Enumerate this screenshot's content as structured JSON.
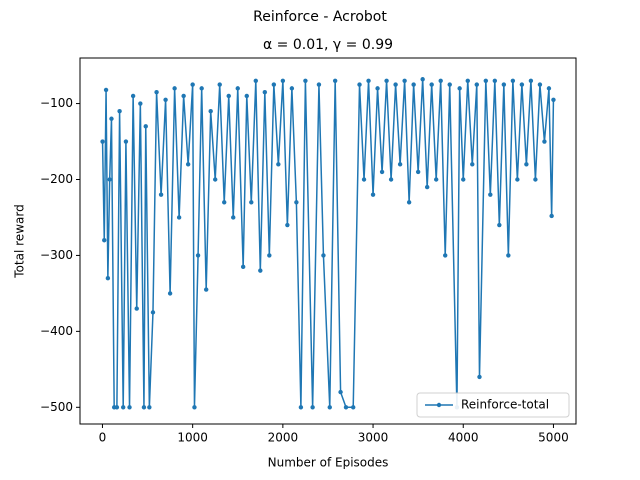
{
  "chart_data": {
    "type": "line",
    "suptitle": "Reinforce - Acrobot",
    "title": "α = 0.01, γ = 0.99",
    "xlabel": "Number of Episodes",
    "ylabel": "Total reward",
    "xlim": [
      -249,
      5250
    ],
    "ylim": [
      -522,
      -40
    ],
    "xticks": [
      0,
      1000,
      2000,
      3000,
      4000,
      5000
    ],
    "yticks": [
      {
        "value": -500,
        "label": "−500"
      },
      {
        "value": -400,
        "label": "−400"
      },
      {
        "value": -300,
        "label": "−300"
      },
      {
        "value": -200,
        "label": "−200"
      },
      {
        "value": -100,
        "label": "−100"
      }
    ],
    "legend": "lower right",
    "x": [
      1,
      20,
      40,
      60,
      80,
      100,
      130,
      160,
      190,
      230,
      260,
      300,
      340,
      380,
      420,
      460,
      480,
      520,
      560,
      600,
      650,
      700,
      750,
      800,
      850,
      900,
      950,
      1000,
      1020,
      1060,
      1100,
      1150,
      1200,
      1250,
      1300,
      1350,
      1400,
      1450,
      1500,
      1560,
      1600,
      1650,
      1700,
      1750,
      1800,
      1850,
      1900,
      1950,
      2000,
      2050,
      2100,
      2150,
      2200,
      2250,
      2330,
      2400,
      2450,
      2520,
      2580,
      2640,
      2700,
      2780,
      2850,
      2900,
      2950,
      3000,
      3050,
      3100,
      3150,
      3200,
      3250,
      3300,
      3350,
      3400,
      3450,
      3500,
      3550,
      3600,
      3650,
      3700,
      3750,
      3800,
      3850,
      3930,
      3960,
      4000,
      4050,
      4100,
      4150,
      4180,
      4250,
      4300,
      4350,
      4400,
      4450,
      4500,
      4550,
      4600,
      4650,
      4700,
      4750,
      4800,
      4850,
      4900,
      4950,
      4980,
      5000
    ],
    "series": [
      {
        "name": "Reinforce-total",
        "color": "#1f77b4",
        "values": [
          -150,
          -280,
          -82,
          -330,
          -200,
          -120,
          -500,
          -500,
          -110,
          -500,
          -150,
          -500,
          -90,
          -370,
          -100,
          -500,
          -130,
          -500,
          -375,
          -85,
          -220,
          -95,
          -350,
          -80,
          -250,
          -90,
          -180,
          -75,
          -500,
          -300,
          -80,
          -345,
          -110,
          -200,
          -75,
          -230,
          -90,
          -250,
          -80,
          -315,
          -90,
          -230,
          -70,
          -320,
          -85,
          -300,
          -75,
          -180,
          -70,
          -260,
          -80,
          -230,
          -500,
          -70,
          -500,
          -75,
          -300,
          -500,
          -70,
          -480,
          -500,
          -500,
          -75,
          -200,
          -70,
          -220,
          -80,
          -190,
          -70,
          -200,
          -75,
          -180,
          -70,
          -230,
          -75,
          -190,
          -68,
          -210,
          -75,
          -200,
          -70,
          -300,
          -75,
          -500,
          -80,
          -200,
          -70,
          -180,
          -75,
          -460,
          -70,
          -220,
          -70,
          -260,
          -75,
          -300,
          -70,
          -200,
          -75,
          -180,
          -70,
          -200,
          -75,
          -150,
          -80,
          -248,
          -95
        ]
      }
    ]
  }
}
